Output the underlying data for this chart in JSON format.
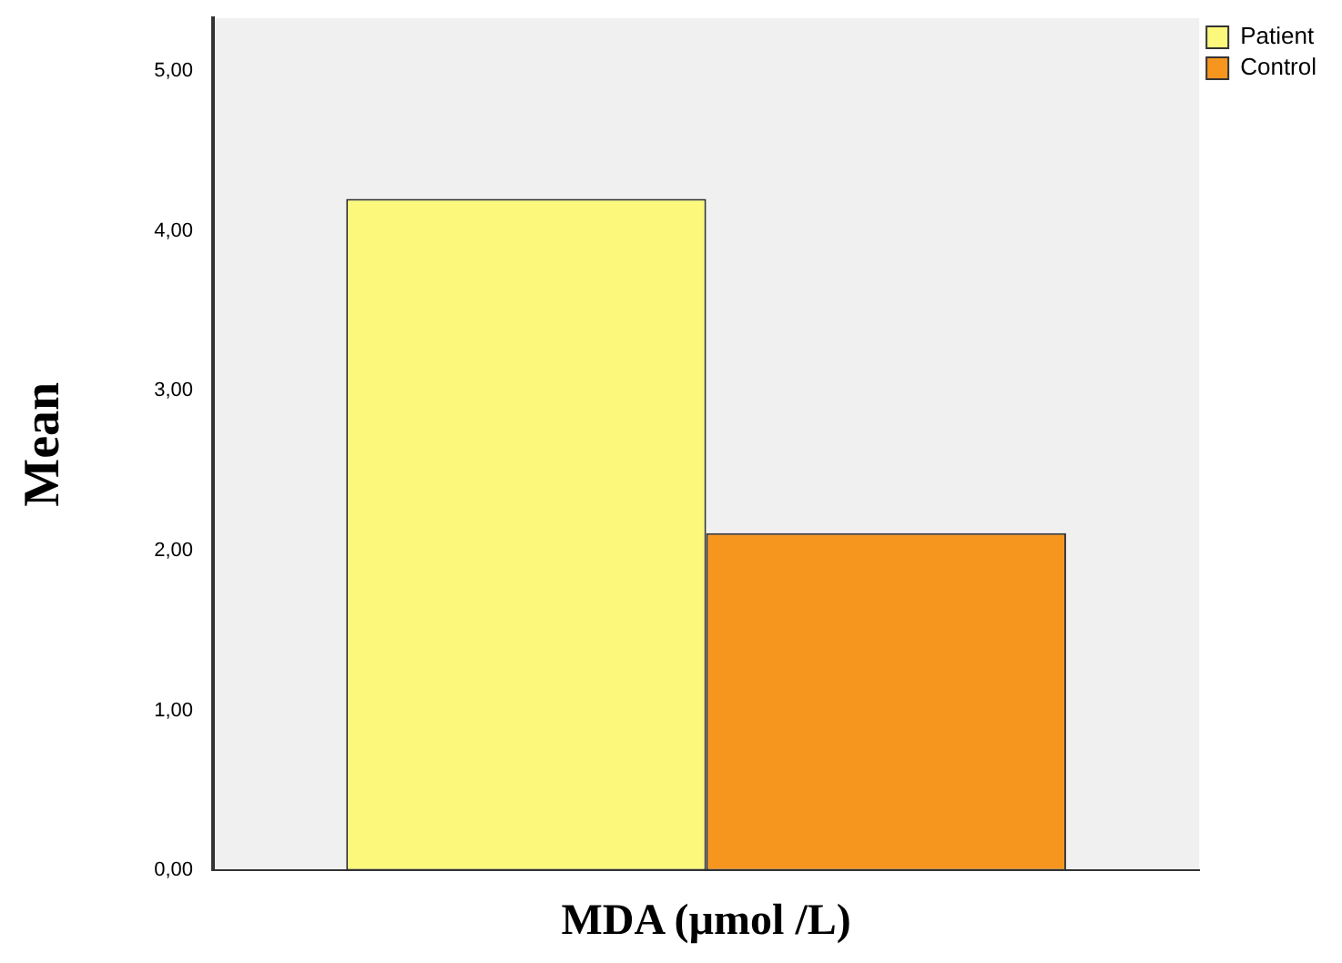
{
  "chart_data": {
    "type": "bar",
    "xlabel": "MDA (µmol /L)",
    "ylabel": "Mean",
    "categories": [
      null
    ],
    "series": [
      {
        "name": "Patient",
        "color": "#fbf87c",
        "values": [
          4.2
        ]
      },
      {
        "name": "Control",
        "color": "#f7961e",
        "values": [
          2.11
        ]
      }
    ],
    "ylim": [
      0,
      5.33
    ],
    "yticks": [
      {
        "value": 0,
        "label": "0,00"
      },
      {
        "value": 1,
        "label": "1,00"
      },
      {
        "value": 2,
        "label": "2,00"
      },
      {
        "value": 3,
        "label": "3,00"
      },
      {
        "value": 4,
        "label": "4,00"
      },
      {
        "value": 5,
        "label": "5,00"
      }
    ],
    "grid": false,
    "legend": "top right"
  }
}
